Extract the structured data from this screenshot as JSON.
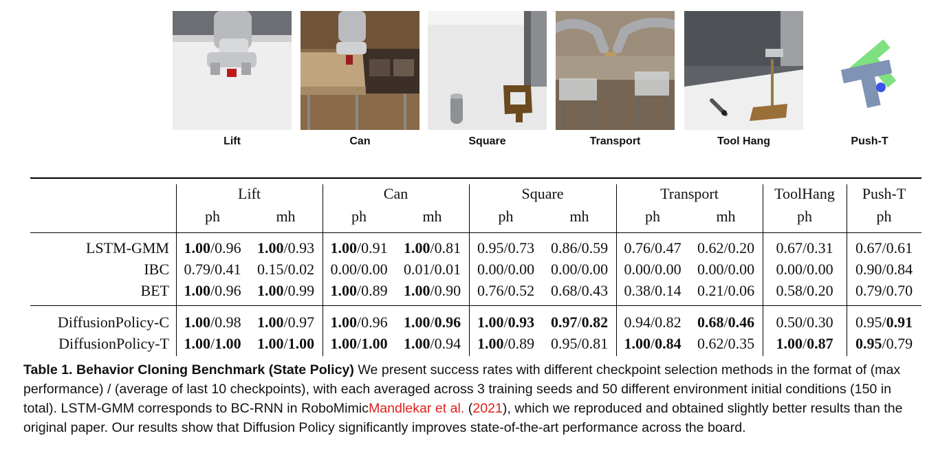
{
  "tasks": [
    {
      "name": "Lift"
    },
    {
      "name": "Can"
    },
    {
      "name": "Square"
    },
    {
      "name": "Transport"
    },
    {
      "name": "Tool Hang"
    },
    {
      "name": "Push-T"
    }
  ],
  "table": {
    "groups": [
      "Lift",
      "Can",
      "Square",
      "Transport",
      "ToolHang",
      "Push-T"
    ],
    "subheaders": [
      "ph",
      "mh",
      "ph",
      "mh",
      "ph",
      "mh",
      "ph",
      "mh",
      "ph",
      "ph"
    ],
    "rows": [
      {
        "label": "LSTM-GMM",
        "cells": [
          {
            "a": "1.00",
            "ab": true,
            "b": "0.96",
            "bb": false
          },
          {
            "a": "1.00",
            "ab": true,
            "b": "0.93",
            "bb": false
          },
          {
            "a": "1.00",
            "ab": true,
            "b": "0.91",
            "bb": false
          },
          {
            "a": "1.00",
            "ab": true,
            "b": "0.81",
            "bb": false
          },
          {
            "a": "0.95",
            "ab": false,
            "b": "0.73",
            "bb": false
          },
          {
            "a": "0.86",
            "ab": false,
            "b": "0.59",
            "bb": false
          },
          {
            "a": "0.76",
            "ab": false,
            "b": "0.47",
            "bb": false
          },
          {
            "a": "0.62",
            "ab": false,
            "b": "0.20",
            "bb": false
          },
          {
            "a": "0.67",
            "ab": false,
            "b": "0.31",
            "bb": false
          },
          {
            "a": "0.67",
            "ab": false,
            "b": "0.61",
            "bb": false
          }
        ]
      },
      {
        "label": "IBC",
        "cells": [
          {
            "a": "0.79",
            "ab": false,
            "b": "0.41",
            "bb": false
          },
          {
            "a": "0.15",
            "ab": false,
            "b": "0.02",
            "bb": false
          },
          {
            "a": "0.00",
            "ab": false,
            "b": "0.00",
            "bb": false
          },
          {
            "a": "0.01",
            "ab": false,
            "b": "0.01",
            "bb": false
          },
          {
            "a": "0.00",
            "ab": false,
            "b": "0.00",
            "bb": false
          },
          {
            "a": "0.00",
            "ab": false,
            "b": "0.00",
            "bb": false
          },
          {
            "a": "0.00",
            "ab": false,
            "b": "0.00",
            "bb": false
          },
          {
            "a": "0.00",
            "ab": false,
            "b": "0.00",
            "bb": false
          },
          {
            "a": "0.00",
            "ab": false,
            "b": "0.00",
            "bb": false
          },
          {
            "a": "0.90",
            "ab": false,
            "b": "0.84",
            "bb": false
          }
        ]
      },
      {
        "label": "BET",
        "cells": [
          {
            "a": "1.00",
            "ab": true,
            "b": "0.96",
            "bb": false
          },
          {
            "a": "1.00",
            "ab": true,
            "b": "0.99",
            "bb": false
          },
          {
            "a": "1.00",
            "ab": true,
            "b": "0.89",
            "bb": false
          },
          {
            "a": "1.00",
            "ab": true,
            "b": "0.90",
            "bb": false
          },
          {
            "a": "0.76",
            "ab": false,
            "b": "0.52",
            "bb": false
          },
          {
            "a": "0.68",
            "ab": false,
            "b": "0.43",
            "bb": false
          },
          {
            "a": "0.38",
            "ab": false,
            "b": "0.14",
            "bb": false
          },
          {
            "a": "0.21",
            "ab": false,
            "b": "0.06",
            "bb": false
          },
          {
            "a": "0.58",
            "ab": false,
            "b": "0.20",
            "bb": false
          },
          {
            "a": "0.79",
            "ab": false,
            "b": "0.70",
            "bb": false
          }
        ]
      },
      {
        "label": "DiffusionPolicy-C",
        "cells": [
          {
            "a": "1.00",
            "ab": true,
            "b": "0.98",
            "bb": false
          },
          {
            "a": "1.00",
            "ab": true,
            "b": "0.97",
            "bb": false
          },
          {
            "a": "1.00",
            "ab": true,
            "b": "0.96",
            "bb": false
          },
          {
            "a": "1.00",
            "ab": true,
            "b": "0.96",
            "bb": true
          },
          {
            "a": "1.00",
            "ab": true,
            "b": "0.93",
            "bb": true
          },
          {
            "a": "0.97",
            "ab": true,
            "b": "0.82",
            "bb": true
          },
          {
            "a": "0.94",
            "ab": false,
            "b": "0.82",
            "bb": false
          },
          {
            "a": "0.68",
            "ab": true,
            "b": "0.46",
            "bb": true
          },
          {
            "a": "0.50",
            "ab": false,
            "b": "0.30",
            "bb": false
          },
          {
            "a": "0.95",
            "ab": false,
            "b": "0.91",
            "bb": true
          }
        ]
      },
      {
        "label": "DiffusionPolicy-T",
        "cells": [
          {
            "a": "1.00",
            "ab": true,
            "b": "1.00",
            "bb": true
          },
          {
            "a": "1.00",
            "ab": true,
            "b": "1.00",
            "bb": true
          },
          {
            "a": "1.00",
            "ab": true,
            "b": "1.00",
            "bb": true
          },
          {
            "a": "1.00",
            "ab": true,
            "b": "0.94",
            "bb": false
          },
          {
            "a": "1.00",
            "ab": true,
            "b": "0.89",
            "bb": false
          },
          {
            "a": "0.95",
            "ab": false,
            "b": "0.81",
            "bb": false
          },
          {
            "a": "1.00",
            "ab": true,
            "b": "0.84",
            "bb": true
          },
          {
            "a": "0.62",
            "ab": false,
            "b": "0.35",
            "bb": false
          },
          {
            "a": "1.00",
            "ab": true,
            "b": "0.87",
            "bb": true
          },
          {
            "a": "0.95",
            "ab": true,
            "b": "0.79",
            "bb": false
          }
        ]
      }
    ]
  },
  "caption": {
    "title": "Table 1.  Behavior Cloning Benchmark (State Policy)",
    "text1": "  We present success rates with different checkpoint selection methods in the format of (max performance) / (average of last 10 checkpoints), with each averaged across 3 training seeds and 50 different environment initial conditions (150 in total). LSTM-GMM corresponds to BC-RNN in RoboMimic",
    "cite_author": "Mandlekar et al.",
    "cite_open": " (",
    "cite_year": "2021",
    "cite_close": ")",
    "text2": ", which we reproduced and obtained slightly better results than the original paper. Our results show that Diffusion Policy significantly improves state-of-the-art performance across the board."
  },
  "colors": {
    "link_red": "#e0201b",
    "rule": "#000000",
    "pusht_green": "#7fe07f",
    "pusht_gray": "#7f93b5",
    "pusht_blue": "#3a55e6"
  }
}
